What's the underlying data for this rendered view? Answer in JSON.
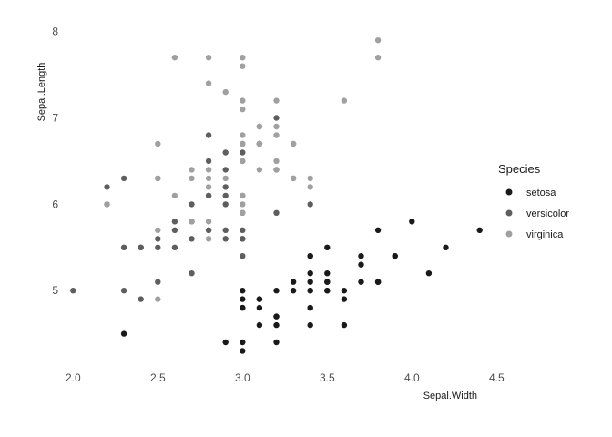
{
  "chart_data": {
    "type": "scatter",
    "xlabel": "Sepal.Width",
    "ylabel": "Sepal.Length",
    "xlim": [
      1.95,
      4.45
    ],
    "ylim": [
      4.2,
      8.05
    ],
    "x_ticks": [
      2.0,
      2.5,
      3.0,
      3.5,
      4.0,
      4.5
    ],
    "x_tick_labels": [
      "2.0",
      "2.5",
      "3.0",
      "3.5",
      "4.0",
      "4.5"
    ],
    "y_ticks": [
      5,
      6,
      7,
      8
    ],
    "y_tick_labels": [
      "5",
      "6",
      "7",
      "8"
    ],
    "grid": false,
    "legend": {
      "title": "Species",
      "position": "right"
    },
    "series": [
      {
        "name": "setosa",
        "color": "#1a1a1a",
        "points": [
          [
            3.5,
            5.1
          ],
          [
            3.0,
            4.9
          ],
          [
            3.2,
            4.7
          ],
          [
            3.1,
            4.6
          ],
          [
            3.6,
            5.0
          ],
          [
            3.9,
            5.4
          ],
          [
            3.4,
            4.6
          ],
          [
            3.4,
            5.0
          ],
          [
            2.9,
            4.4
          ],
          [
            3.1,
            4.9
          ],
          [
            3.7,
            5.4
          ],
          [
            3.4,
            4.8
          ],
          [
            3.0,
            4.8
          ],
          [
            3.0,
            4.3
          ],
          [
            4.0,
            5.8
          ],
          [
            4.4,
            5.7
          ],
          [
            3.9,
            5.4
          ],
          [
            3.5,
            5.1
          ],
          [
            3.8,
            5.7
          ],
          [
            3.8,
            5.1
          ],
          [
            3.4,
            5.4
          ],
          [
            3.7,
            5.1
          ],
          [
            3.6,
            4.6
          ],
          [
            3.3,
            5.1
          ],
          [
            3.4,
            4.8
          ],
          [
            3.0,
            5.0
          ],
          [
            3.4,
            5.0
          ],
          [
            3.5,
            5.2
          ],
          [
            3.4,
            5.2
          ],
          [
            3.2,
            4.7
          ],
          [
            3.1,
            4.8
          ],
          [
            3.4,
            5.4
          ],
          [
            4.1,
            5.2
          ],
          [
            4.2,
            5.5
          ],
          [
            3.1,
            4.9
          ],
          [
            3.2,
            5.0
          ],
          [
            3.5,
            5.5
          ],
          [
            3.6,
            4.9
          ],
          [
            3.0,
            4.4
          ],
          [
            3.4,
            5.1
          ],
          [
            3.5,
            5.0
          ],
          [
            2.3,
            4.5
          ],
          [
            3.2,
            4.4
          ],
          [
            3.5,
            5.0
          ],
          [
            3.8,
            5.1
          ],
          [
            3.0,
            4.8
          ],
          [
            3.8,
            5.1
          ],
          [
            3.2,
            4.6
          ],
          [
            3.7,
            5.3
          ],
          [
            3.3,
            5.0
          ]
        ]
      },
      {
        "name": "versicolor",
        "color": "#5e5e5e",
        "points": [
          [
            3.2,
            7.0
          ],
          [
            3.2,
            6.4
          ],
          [
            3.1,
            6.9
          ],
          [
            2.3,
            5.5
          ],
          [
            2.8,
            6.5
          ],
          [
            2.8,
            5.7
          ],
          [
            3.3,
            6.3
          ],
          [
            2.4,
            4.9
          ],
          [
            2.9,
            6.6
          ],
          [
            2.7,
            5.2
          ],
          [
            2.0,
            5.0
          ],
          [
            3.0,
            5.9
          ],
          [
            2.2,
            6.0
          ],
          [
            2.9,
            6.1
          ],
          [
            2.9,
            5.6
          ],
          [
            3.1,
            6.7
          ],
          [
            3.0,
            5.6
          ],
          [
            2.7,
            5.8
          ],
          [
            2.2,
            6.2
          ],
          [
            2.5,
            5.6
          ],
          [
            3.2,
            5.9
          ],
          [
            2.8,
            6.1
          ],
          [
            2.5,
            6.3
          ],
          [
            2.8,
            6.1
          ],
          [
            2.9,
            6.4
          ],
          [
            3.0,
            6.6
          ],
          [
            2.8,
            6.8
          ],
          [
            3.0,
            6.7
          ],
          [
            2.9,
            6.0
          ],
          [
            2.6,
            5.7
          ],
          [
            2.4,
            5.5
          ],
          [
            2.4,
            5.5
          ],
          [
            2.7,
            5.8
          ],
          [
            2.7,
            6.0
          ],
          [
            3.0,
            5.4
          ],
          [
            3.4,
            6.0
          ],
          [
            3.1,
            6.7
          ],
          [
            2.3,
            6.3
          ],
          [
            3.0,
            5.6
          ],
          [
            2.5,
            5.5
          ],
          [
            2.6,
            5.5
          ],
          [
            3.0,
            6.1
          ],
          [
            2.6,
            5.8
          ],
          [
            2.3,
            5.0
          ],
          [
            2.7,
            5.6
          ],
          [
            3.0,
            5.7
          ],
          [
            2.9,
            5.7
          ],
          [
            2.9,
            6.2
          ],
          [
            2.5,
            5.1
          ],
          [
            2.8,
            5.7
          ]
        ]
      },
      {
        "name": "virginica",
        "color": "#a0a0a0",
        "points": [
          [
            3.3,
            6.3
          ],
          [
            2.7,
            5.8
          ],
          [
            3.0,
            7.1
          ],
          [
            2.9,
            6.3
          ],
          [
            3.0,
            6.5
          ],
          [
            3.0,
            7.6
          ],
          [
            2.5,
            4.9
          ],
          [
            2.9,
            7.3
          ],
          [
            2.5,
            6.7
          ],
          [
            3.6,
            7.2
          ],
          [
            3.2,
            6.5
          ],
          [
            2.7,
            6.4
          ],
          [
            3.0,
            6.8
          ],
          [
            2.5,
            5.7
          ],
          [
            2.8,
            5.8
          ],
          [
            3.2,
            6.4
          ],
          [
            3.0,
            6.5
          ],
          [
            3.8,
            7.7
          ],
          [
            2.6,
            7.7
          ],
          [
            2.2,
            6.0
          ],
          [
            3.2,
            6.9
          ],
          [
            2.8,
            5.6
          ],
          [
            2.8,
            7.7
          ],
          [
            2.7,
            6.3
          ],
          [
            3.3,
            6.7
          ],
          [
            3.2,
            7.2
          ],
          [
            2.8,
            6.2
          ],
          [
            3.0,
            6.1
          ],
          [
            2.8,
            6.4
          ],
          [
            3.0,
            7.2
          ],
          [
            2.8,
            7.4
          ],
          [
            3.8,
            7.9
          ],
          [
            2.8,
            6.4
          ],
          [
            2.8,
            6.3
          ],
          [
            2.6,
            6.1
          ],
          [
            3.0,
            7.7
          ],
          [
            3.4,
            6.3
          ],
          [
            3.1,
            6.4
          ],
          [
            3.0,
            6.0
          ],
          [
            3.1,
            6.9
          ],
          [
            3.1,
            6.7
          ],
          [
            3.1,
            6.9
          ],
          [
            2.7,
            5.8
          ],
          [
            3.2,
            6.8
          ],
          [
            3.3,
            6.7
          ],
          [
            3.0,
            6.7
          ],
          [
            2.5,
            6.3
          ],
          [
            3.0,
            6.5
          ],
          [
            3.4,
            6.2
          ],
          [
            3.0,
            5.9
          ]
        ]
      }
    ]
  }
}
